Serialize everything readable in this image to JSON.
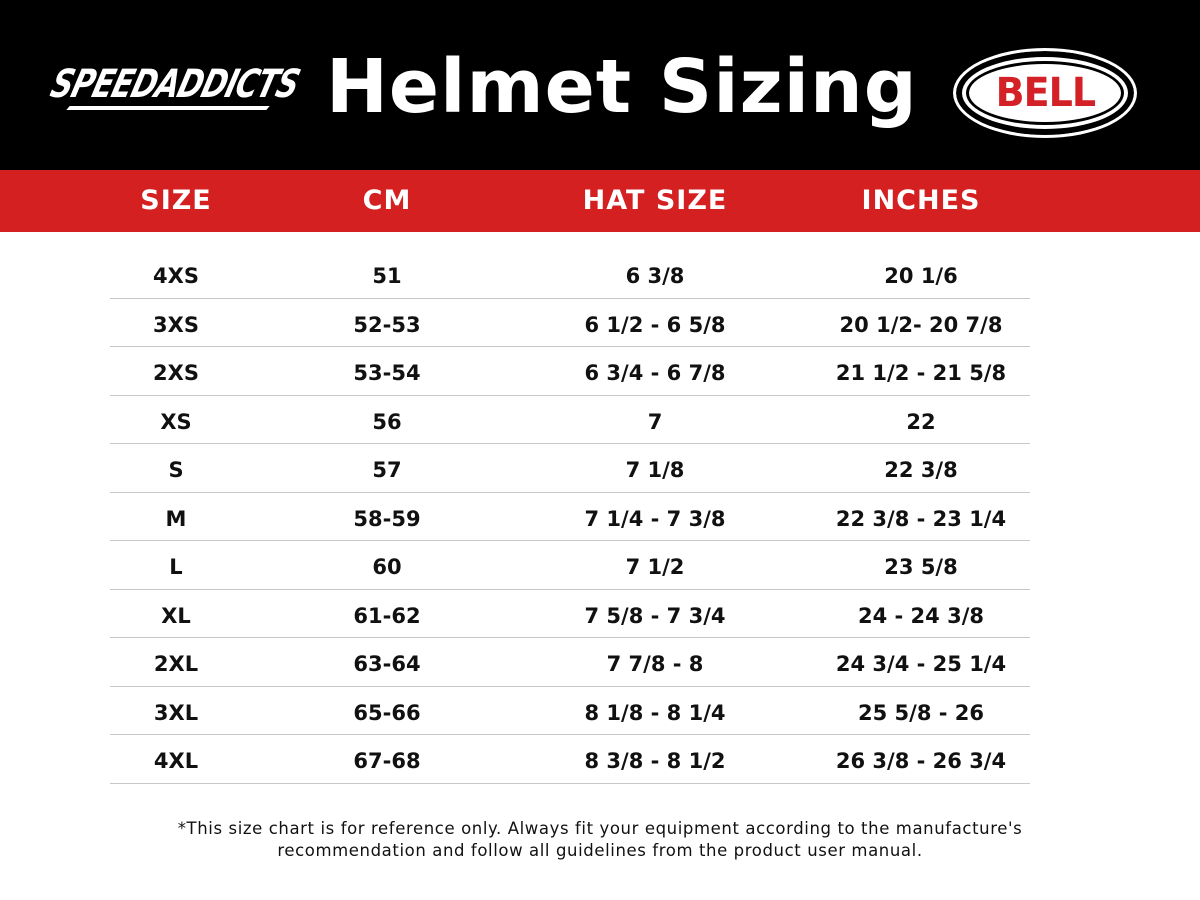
{
  "header": {
    "brand_logo": "SPEEDADDICTS",
    "title": "Helmet Sizing",
    "partner_logo": "BELL"
  },
  "colors": {
    "header_bg": "#000000",
    "accent_red": "#d42020",
    "text": "#111111"
  },
  "table": {
    "columns": [
      "SIZE",
      "CM",
      "HAT SIZE",
      "INCHES"
    ],
    "rows": [
      [
        "4XS",
        "51",
        "6 3/8",
        "20 1/6"
      ],
      [
        "3XS",
        "52-53",
        "6 1/2 - 6 5/8",
        "20 1/2- 20 7/8"
      ],
      [
        "2XS",
        "53-54",
        "6 3/4 - 6 7/8",
        "21 1/2 - 21 5/8"
      ],
      [
        "XS",
        "56",
        "7",
        "22"
      ],
      [
        "S",
        "57",
        "7 1/8",
        "22 3/8"
      ],
      [
        "M",
        "58-59",
        "7 1/4 - 7 3/8",
        "22 3/8 - 23 1/4"
      ],
      [
        "L",
        "60",
        "7 1/2",
        "23 5/8"
      ],
      [
        "XL",
        "61-62",
        "7 5/8 - 7 3/4",
        "24 - 24 3/8"
      ],
      [
        "2XL",
        "63-64",
        "7 7/8 - 8",
        "24 3/4 - 25 1/4"
      ],
      [
        "3XL",
        "65-66",
        "8 1/8 - 8 1/4",
        "25 5/8 - 26"
      ],
      [
        "4XL",
        "67-68",
        "8 3/8 - 8 1/2",
        "26 3/8 - 26 3/4"
      ]
    ]
  },
  "footer": {
    "line1": "*This size chart is for reference only. Always fit your equipment according to the manufacture's",
    "line2": "recommendation and follow all guidelines from the product user manual."
  }
}
